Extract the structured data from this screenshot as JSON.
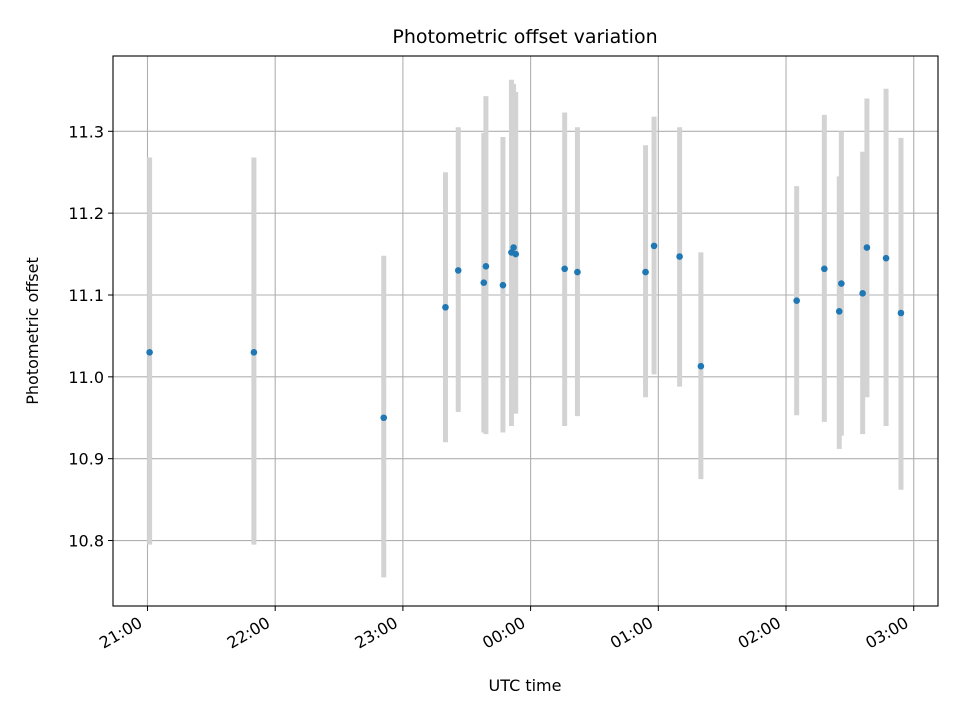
{
  "chart_data": {
    "type": "scatter",
    "title": "Photometric offset variation",
    "xlabel": "UTC time",
    "ylabel": "Photometric offset",
    "grid": true,
    "x_tick_labels": [
      "21:00",
      "22:00",
      "23:00",
      "00:00",
      "01:00",
      "02:00",
      "03:00"
    ],
    "y_ticks": [
      10.8,
      10.9,
      11.0,
      11.1,
      11.2,
      11.3
    ],
    "y_tick_labels": [
      "10.8",
      "10.9",
      "11.0",
      "11.1",
      "11.2",
      "11.3"
    ],
    "x_range_hours": [
      20.73,
      27.19
    ],
    "ylim": [
      10.72,
      11.392
    ],
    "series": [
      {
        "marker_color": "#1f77b4",
        "errorbar_color": "#d3d3d3",
        "x_time": [
          "21:01",
          "21:50",
          "22:51",
          "23:20",
          "23:26",
          "23:38",
          "23:39",
          "23:47",
          "23:51",
          "23:52",
          "23:53",
          "00:16",
          "00:22",
          "00:54",
          "00:58",
          "01:10",
          "01:20",
          "02:05",
          "02:18",
          "02:25",
          "02:26",
          "02:36",
          "02:38",
          "02:47",
          "02:54"
        ],
        "y": [
          11.03,
          11.03,
          10.95,
          11.085,
          11.13,
          11.115,
          11.135,
          11.112,
          11.152,
          11.158,
          11.15,
          11.132,
          11.128,
          11.128,
          11.16,
          11.147,
          11.013,
          11.093,
          11.132,
          11.08,
          11.114,
          11.102,
          11.158,
          11.145,
          11.078
        ],
        "y_err_low": [
          10.795,
          10.795,
          10.755,
          10.92,
          10.957,
          10.932,
          10.93,
          10.932,
          10.94,
          10.955,
          10.955,
          10.94,
          10.952,
          10.975,
          11.003,
          10.988,
          10.875,
          10.953,
          10.945,
          10.912,
          10.928,
          10.93,
          10.975,
          10.94,
          10.862
        ],
        "y_err_high": [
          11.268,
          11.268,
          11.148,
          11.25,
          11.305,
          11.298,
          11.343,
          11.293,
          11.363,
          11.358,
          11.348,
          11.323,
          11.305,
          11.283,
          11.318,
          11.305,
          11.152,
          11.233,
          11.32,
          11.245,
          11.3,
          11.275,
          11.34,
          11.352,
          11.292
        ]
      }
    ]
  }
}
